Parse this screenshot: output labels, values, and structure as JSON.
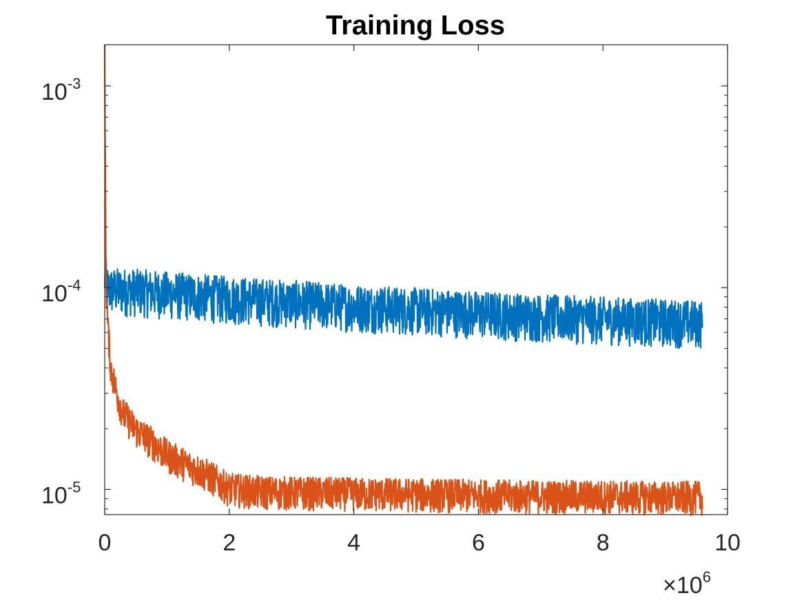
{
  "chart_data": {
    "type": "line",
    "title": "Training Loss",
    "xlabel": "",
    "ylabel": "",
    "x_multiplier": {
      "base": "×10",
      "exponent": "6"
    },
    "xlim": [
      0,
      10
    ],
    "ylim": [
      7.5e-06,
      0.0016
    ],
    "yscale": "log",
    "x_ticks": [
      "0",
      "2",
      "4",
      "6",
      "8",
      "10"
    ],
    "y_ticks": [
      {
        "value": 1e-05,
        "base": "10",
        "exponent": "-5"
      },
      {
        "value": 0.0001,
        "base": "10",
        "exponent": "-4"
      },
      {
        "value": 0.001,
        "base": "10",
        "exponent": "-3"
      }
    ],
    "grid": false,
    "series": [
      {
        "color": "#0072BD",
        "x": [
          0,
          0.01,
          0.05,
          0.2,
          0.5,
          1,
          2,
          3,
          4,
          5,
          6,
          7,
          8,
          9,
          9.6
        ],
        "y": [
          0.0001,
          0.000115,
          0.0001,
          0.0001,
          9.9e-05,
          9.6e-05,
          9.1e-05,
          8.7e-05,
          8.3e-05,
          8e-05,
          7.7e-05,
          7.4e-05,
          7.2e-05,
          7e-05,
          6.9e-05
        ],
        "noise_band": [
          0.72,
          1.25
        ]
      },
      {
        "color": "#D95319",
        "x": [
          0,
          0.01,
          0.02,
          0.05,
          0.1,
          0.2,
          0.3,
          0.5,
          0.8,
          1,
          1.3,
          1.6,
          1.8,
          2,
          2.5,
          3,
          4,
          5,
          6,
          7,
          8,
          9,
          9.6
        ],
        "y": [
          0.0016,
          0.0004,
          0.00011,
          6.5e-05,
          4e-05,
          3e-05,
          2.4e-05,
          2e-05,
          1.7e-05,
          1.5e-05,
          1.35e-05,
          1.22e-05,
          1.12e-05,
          1.02e-05,
          9.9e-06,
          9.8e-06,
          9.7e-06,
          9.6e-06,
          9.5e-06,
          9.4e-06,
          9.4e-06,
          9.3e-06,
          9.3e-06
        ],
        "noise_band": [
          0.8,
          1.18
        ]
      }
    ]
  }
}
